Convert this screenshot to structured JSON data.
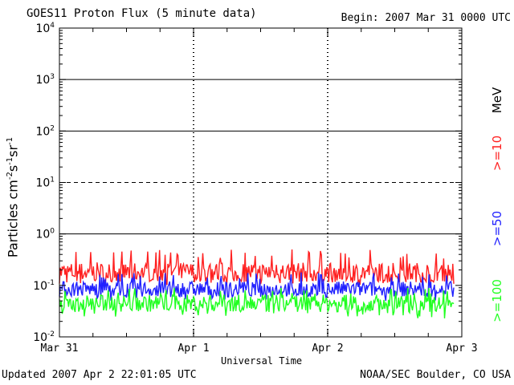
{
  "title": "GOES11 Proton Flux (5 minute data)",
  "begin": "Begin: 2007 Mar 31 0000 UTC",
  "updated": "Updated 2007 Apr  2 22:01:05 UTC",
  "credit": "NOAA/SEC Boulder, CO USA",
  "colors": {
    "red": "#ff2020",
    "blue": "#2020ff",
    "green": "#20ff20"
  },
  "chart_data": {
    "type": "line",
    "xlabel": "Universal Time",
    "ylabel_base": "Particles cm",
    "ylabel_exp1": "-2",
    "ylabel_mid1": "s",
    "ylabel_exp2": "-1",
    "ylabel_mid2": "sr",
    "ylabel_exp3": "-1",
    "y_scale": "log",
    "ylim": [
      0.01,
      10000
    ],
    "xlim": [
      "2007-03-31 00:00",
      "2007-04-03 00:00"
    ],
    "x_tick_labels": [
      "Mar 31",
      "Apr 1",
      "Apr 2",
      "Apr 3"
    ],
    "y_tick_labels": [
      {
        "base": "10",
        "exp": "-2"
      },
      {
        "base": "10",
        "exp": "-1"
      },
      {
        "base": "10",
        "exp": "0"
      },
      {
        "base": "10",
        "exp": "1"
      },
      {
        "base": "10",
        "exp": "2"
      },
      {
        "base": "10",
        "exp": "3"
      },
      {
        "base": "10",
        "exp": "4"
      }
    ],
    "reference_lines": [
      {
        "y": 1,
        "style": "solid"
      },
      {
        "y": 10,
        "style": "dashed"
      },
      {
        "y": 100,
        "style": "solid"
      },
      {
        "y": 1000,
        "style": "solid"
      }
    ],
    "legend_unit": "MeV",
    "legend_placement": "right",
    "series": [
      {
        "name": ">=10",
        "color": "#ff2020",
        "typical": 0.18,
        "low": 0.1,
        "high": 0.5
      },
      {
        "name": ">=50",
        "color": "#2020ff",
        "typical": 0.085,
        "low": 0.05,
        "high": 0.18
      },
      {
        "name": ">=100",
        "color": "#20ff20",
        "typical": 0.045,
        "low": 0.022,
        "high": 0.09
      }
    ]
  }
}
